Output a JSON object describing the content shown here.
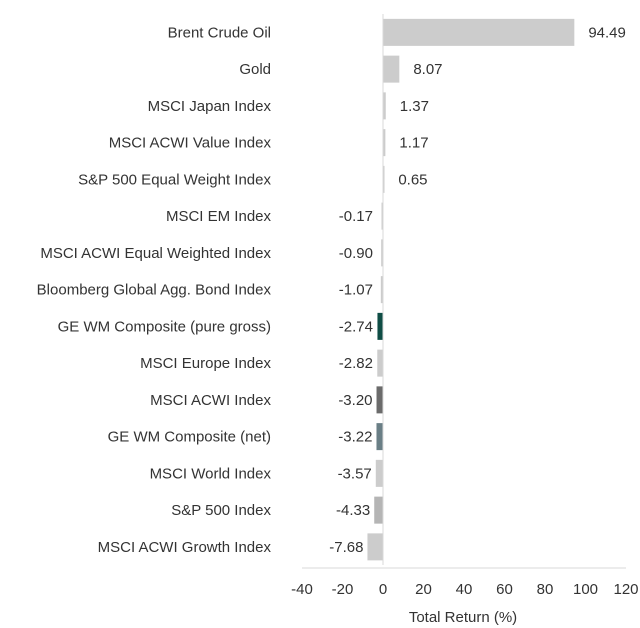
{
  "chart_data": {
    "type": "bar",
    "orientation": "horizontal",
    "title": "",
    "xlabel": "Total Return (%)",
    "ylabel": "",
    "xlim": [
      -40,
      120
    ],
    "xticks": [
      "-40",
      "-20",
      "0",
      "20",
      "40",
      "60",
      "80",
      "100",
      "120"
    ],
    "grid": false,
    "legend": "none",
    "categories": [
      "Brent Crude Oil",
      "Gold",
      "MSCI Japan Index",
      "MSCI ACWI Value Index",
      "S&P 500 Equal Weight Index",
      "MSCI EM Index",
      "MSCI ACWI Equal Weighted Index",
      "Bloomberg Global Agg. Bond Index",
      "GE WM Composite (pure gross)",
      "MSCI Europe Index",
      "MSCI ACWI Index",
      "GE WM Composite (net)",
      "MSCI World Index",
      "S&P 500 Index",
      "MSCI ACWI Growth Index"
    ],
    "values": [
      94.49,
      8.07,
      1.37,
      1.17,
      0.65,
      -0.17,
      -0.9,
      -1.07,
      -2.74,
      -2.82,
      -3.2,
      -3.22,
      -3.57,
      -4.33,
      -7.68
    ],
    "value_labels": [
      "94.49",
      "8.07",
      "1.37",
      "1.17",
      "0.65",
      "-0.17",
      "-0.90",
      "-1.07",
      "-2.74",
      "-2.82",
      "-3.20",
      "-3.22",
      "-3.57",
      "-4.33",
      "-7.68"
    ],
    "colors": [
      "#cccccc",
      "#cccccc",
      "#cccccc",
      "#cccccc",
      "#cccccc",
      "#cccccc",
      "#cccccc",
      "#cccccc",
      "#0f4d45",
      "#cccccc",
      "#6b6b6b",
      "#6a7f86",
      "#cccccc",
      "#b5b5b5",
      "#cccccc"
    ]
  }
}
